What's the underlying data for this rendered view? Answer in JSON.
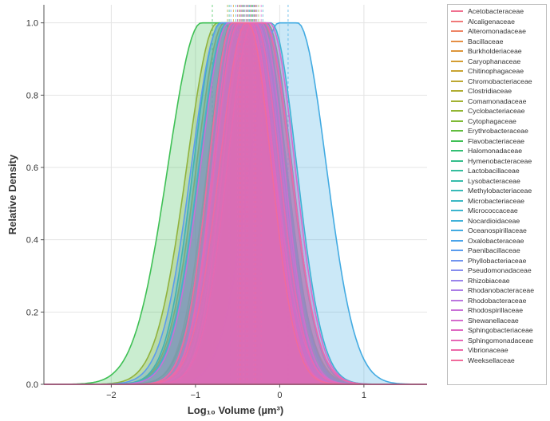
{
  "chart_data": {
    "type": "area",
    "xlabel": "Log₁₀ Volume (µm³)",
    "ylabel": "Relative Density",
    "xlim": [
      -2.8,
      1.75
    ],
    "ylim": [
      0,
      1.05
    ],
    "x_ticks": [
      "−2",
      "−1",
      "0",
      "1"
    ],
    "x_tick_values": [
      -2,
      -1,
      0,
      1
    ],
    "y_ticks": [
      "0.0",
      "0.2",
      "0.4",
      "0.6",
      "0.8",
      "1.0"
    ],
    "y_tick_values": [
      0,
      0.2,
      0.4,
      0.6,
      0.8,
      1.0
    ],
    "grid": true,
    "legend_position": "right",
    "series": [
      {
        "name": "Acetobacteraceae",
        "color": "#f0708f",
        "peak": -0.42,
        "width": 0.55
      },
      {
        "name": "Alcaligenaceae",
        "color": "#f07a7a",
        "peak": -0.35,
        "width": 0.5
      },
      {
        "name": "Alteromonadaceae",
        "color": "#ee8465",
        "peak": -0.3,
        "width": 0.58
      },
      {
        "name": "Bacillaceae",
        "color": "#e58f45",
        "peak": -0.5,
        "width": 0.62
      },
      {
        "name": "Burkholderiaceae",
        "color": "#dd963a",
        "peak": -0.4,
        "width": 0.52
      },
      {
        "name": "Caryophanaceae",
        "color": "#d49d33",
        "peak": -0.55,
        "width": 0.6
      },
      {
        "name": "Chitinophagaceae",
        "color": "#c9a332",
        "peak": -0.28,
        "width": 0.48
      },
      {
        "name": "Chromobacteriaceae",
        "color": "#bda833",
        "peak": -0.45,
        "width": 0.56
      },
      {
        "name": "Clostridiaceae",
        "color": "#b0ad33",
        "peak": -0.62,
        "width": 0.66
      },
      {
        "name": "Comamonadaceae",
        "color": "#a2b233",
        "peak": -0.33,
        "width": 0.5
      },
      {
        "name": "Cyclobacteriaceae",
        "color": "#92b634",
        "peak": -0.25,
        "width": 0.54
      },
      {
        "name": "Cytophagaceae",
        "color": "#7fba36",
        "peak": -0.38,
        "width": 0.6
      },
      {
        "name": "Erythrobacteraceae",
        "color": "#62bd3f",
        "peak": -0.48,
        "width": 0.5
      },
      {
        "name": "Flavobacteriaceae",
        "color": "#3fc055",
        "peak": -0.8,
        "width": 0.72
      },
      {
        "name": "Halomonadaceae",
        "color": "#33bf74",
        "peak": -0.32,
        "width": 0.55
      },
      {
        "name": "Hymenobacteraceae",
        "color": "#35be8c",
        "peak": -0.42,
        "width": 0.5
      },
      {
        "name": "Lactobacillaceae",
        "color": "#36bd9d",
        "peak": -0.6,
        "width": 0.58
      },
      {
        "name": "Lysobacteraceae",
        "color": "#37bcab",
        "peak": -0.3,
        "width": 0.52
      },
      {
        "name": "Methylobacteriaceae",
        "color": "#39bab8",
        "peak": -0.36,
        "width": 0.57
      },
      {
        "name": "Microbacteriaceae",
        "color": "#3bb8c4",
        "peak": -0.52,
        "width": 0.6
      },
      {
        "name": "Micrococcaceae",
        "color": "#3db5cf",
        "peak": -0.2,
        "width": 0.55
      },
      {
        "name": "Nocardioidaceae",
        "color": "#40b1d9",
        "peak": -0.44,
        "width": 0.5
      },
      {
        "name": "Oceanospirillaceae",
        "color": "#43abe2",
        "peak": 0.1,
        "width": 0.62
      },
      {
        "name": "Oxalobacteraceae",
        "color": "#4aa4ea",
        "peak": -0.34,
        "width": 0.52
      },
      {
        "name": "Paenibacillaceae",
        "color": "#5a9cee",
        "peak": -0.58,
        "width": 0.64
      },
      {
        "name": "Phyllobacteriaceae",
        "color": "#7194ef",
        "peak": -0.4,
        "width": 0.5
      },
      {
        "name": "Pseudomonadaceae",
        "color": "#868cee",
        "peak": -0.27,
        "width": 0.56
      },
      {
        "name": "Rhizobiaceae",
        "color": "#9a84eb",
        "peak": -0.37,
        "width": 0.54
      },
      {
        "name": "Rhodanobacteraceae",
        "color": "#ab7ce6",
        "peak": -0.46,
        "width": 0.52
      },
      {
        "name": "Rhodobacteraceae",
        "color": "#bb76df",
        "peak": -0.31,
        "width": 0.5
      },
      {
        "name": "Rhodospirillaceae",
        "color": "#c970d7",
        "peak": -0.5,
        "width": 0.6
      },
      {
        "name": "Shewanellaceae",
        "color": "#d56ccd",
        "peak": -0.22,
        "width": 0.55
      },
      {
        "name": "Sphingobacteriaceae",
        "color": "#df69c2",
        "peak": -0.43,
        "width": 0.5
      },
      {
        "name": "Sphingomonadaceae",
        "color": "#e768b6",
        "peak": -0.39,
        "width": 0.53
      },
      {
        "name": "Vibrionaceae",
        "color": "#ed69a9",
        "peak": -0.29,
        "width": 0.58
      },
      {
        "name": "Weeksellaceae",
        "color": "#f16b9b",
        "peak": -0.47,
        "width": 0.51
      }
    ]
  }
}
